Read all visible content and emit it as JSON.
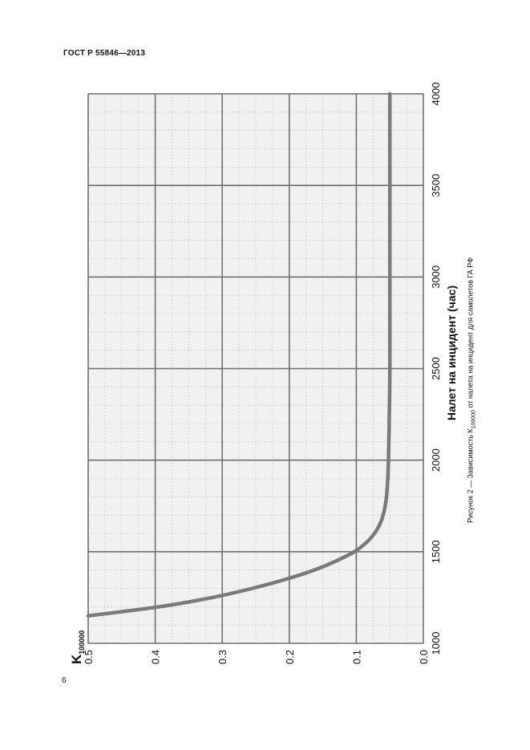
{
  "document": {
    "header": "ГОСТ Р 55846—2013",
    "page_number": "6"
  },
  "caption": {
    "prefix": "Рисунок 2 — Зависимость К",
    "subscript": "100000",
    "suffix": " от налета на инцидент для самолетов ГА РФ"
  },
  "chart_data": {
    "type": "line",
    "orientation": "rotated 90° counter-clockwise",
    "xlabel": "Налет на инцидент (час)",
    "ylabel_main": "K",
    "ylabel_sub": "100000",
    "xlim": [
      1000,
      4000
    ],
    "ylim": [
      0.0,
      0.5
    ],
    "x_ticks": [
      "1000",
      "1500",
      "2000",
      "2500",
      "3000",
      "3500",
      "4000"
    ],
    "y_ticks": [
      "0.0",
      "0.1",
      "0.2",
      "0.3",
      "0.4",
      "0.5"
    ],
    "grid": true,
    "colors": {
      "curve": "#7a7a7a",
      "grid_major": "#6f6f6f",
      "grid_minor": "#9a9a9a",
      "plot_bg": "#f1f1f1"
    },
    "series": [
      {
        "x": [
          1150,
          1200,
          1250,
          1300,
          1350,
          1400,
          1450,
          1500,
          1550,
          1600,
          1650,
          1700,
          1750,
          1800,
          1900,
          2000,
          2200,
          2500,
          3000,
          3500,
          4000
        ],
        "values": [
          0.5,
          0.393,
          0.315,
          0.255,
          0.205,
          0.163,
          0.13,
          0.103,
          0.085,
          0.073,
          0.065,
          0.06,
          0.057,
          0.055,
          0.053,
          0.052,
          0.051,
          0.05,
          0.05,
          0.05,
          0.05
        ]
      }
    ]
  }
}
